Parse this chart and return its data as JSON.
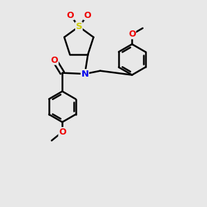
{
  "bg_color": "#e8e8e8",
  "atom_colors": {
    "C": "#000000",
    "N": "#0000ee",
    "O": "#ee0000",
    "S": "#cccc00"
  },
  "bond_color": "#000000",
  "bond_width": 1.8,
  "figsize": [
    3.0,
    3.0
  ],
  "dpi": 100,
  "ring_r": 0.75,
  "benz_r": 0.75
}
